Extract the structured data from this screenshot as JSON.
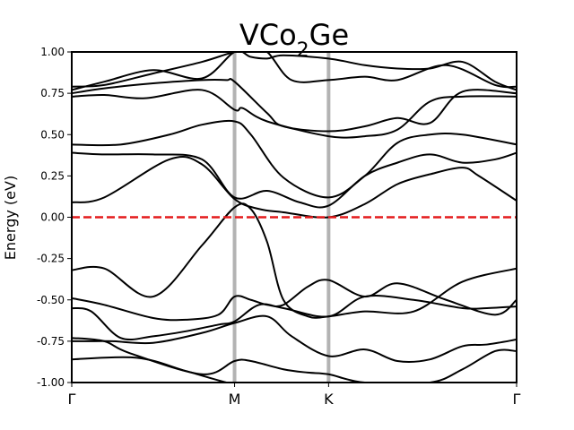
{
  "chart_data": {
    "type": "line",
    "title_main": "VCo",
    "title_sub": "2",
    "title_tail": "Ge",
    "ylabel": "Energy (eV)",
    "xlabel": "",
    "ylim": [
      -1.0,
      1.0
    ],
    "yticks": [
      "-1.00",
      "-0.75",
      "-0.50",
      "-0.25",
      "0.00",
      "0.25",
      "0.50",
      "0.75",
      "1.00"
    ],
    "ytick_values": [
      -1.0,
      -0.75,
      -0.5,
      -0.25,
      0.0,
      0.25,
      0.5,
      0.75,
      1.0
    ],
    "kpath_labels": [
      "Γ",
      "M",
      "K",
      "Γ"
    ],
    "kpath_positions": [
      0.0,
      1.0,
      1.5774,
      2.7321
    ],
    "grid": false,
    "legend": "none",
    "fermi_level": 0.0,
    "colors": {
      "bands": "#000000",
      "fermi": "#e41a1c",
      "kpath_lines": "#b3b3b3"
    },
    "series": [
      {
        "x": [
          0,
          0.4,
          0.7,
          0.95,
          1.0,
          1.2,
          1.4,
          1.5774,
          1.8,
          2.1,
          2.4,
          2.7321
        ],
        "y": [
          -0.86,
          -0.85,
          -0.93,
          -1.0,
          -1.0,
          -1.0,
          -1.0,
          -1.0,
          -1.0,
          -1.0,
          -1.0,
          -1.0
        ]
      },
      {
        "x": [
          0,
          0.2,
          0.35,
          0.8,
          1.0,
          1.1,
          1.3,
          1.45,
          1.5774,
          1.8,
          2.2,
          2.4,
          2.6,
          2.7321
        ],
        "y": [
          -0.73,
          -0.75,
          -0.82,
          -0.95,
          -0.87,
          -0.87,
          -0.92,
          -0.94,
          -0.95,
          -1.0,
          -1.0,
          -0.92,
          -0.81,
          -0.81
        ]
      },
      {
        "x": [
          0,
          0.1,
          0.25,
          0.5,
          0.8,
          1.0,
          1.2,
          1.35,
          1.5774,
          1.8,
          2.0,
          2.2,
          2.4,
          2.55,
          2.7321
        ],
        "y": [
          -0.75,
          -0.75,
          -0.75,
          -0.76,
          -0.7,
          -0.64,
          -0.6,
          -0.72,
          -0.84,
          -0.8,
          -0.87,
          -0.86,
          -0.78,
          -0.77,
          -0.74
        ]
      },
      {
        "x": [
          0,
          0.12,
          0.3,
          0.5,
          0.7,
          0.9,
          1.0,
          1.15,
          1.3,
          1.5774,
          1.8,
          2.1,
          2.4,
          2.55,
          2.7321
        ],
        "y": [
          -0.55,
          -0.57,
          -0.73,
          -0.72,
          -0.69,
          -0.65,
          -0.63,
          -0.53,
          -0.55,
          -0.6,
          -0.48,
          -0.5,
          -0.55,
          -0.55,
          -0.54
        ]
      },
      {
        "x": [
          0,
          0.2,
          0.5,
          0.7,
          0.9,
          1.0,
          1.1,
          1.2,
          1.3,
          1.45,
          1.5774,
          1.8,
          2.0,
          2.3,
          2.6,
          2.7321
        ],
        "y": [
          -0.49,
          -0.53,
          -0.61,
          -0.62,
          -0.59,
          -0.48,
          -0.5,
          -0.53,
          -0.53,
          -0.42,
          -0.38,
          -0.48,
          -0.4,
          -0.5,
          -0.59,
          -0.5
        ]
      },
      {
        "x": [
          0,
          0.2,
          0.5,
          0.8,
          1.0,
          1.1,
          1.2,
          1.3,
          1.45,
          1.5774,
          1.8,
          2.1,
          2.4,
          2.7321
        ],
        "y": [
          -0.32,
          -0.31,
          -0.48,
          -0.17,
          0.06,
          0.05,
          -0.15,
          -0.5,
          -0.6,
          -0.6,
          -0.57,
          -0.57,
          -0.39,
          -0.31
        ]
      },
      {
        "x": [
          0,
          0.2,
          0.6,
          0.8,
          1.0,
          1.15,
          1.3,
          1.5774,
          1.8,
          2.0,
          2.2,
          2.4,
          2.5,
          2.7321
        ],
        "y": [
          0.09,
          0.12,
          0.35,
          0.32,
          0.11,
          0.05,
          0.03,
          0.0,
          0.08,
          0.2,
          0.26,
          0.3,
          0.25,
          0.1
        ]
      },
      {
        "x": [
          0,
          0.2,
          0.5,
          0.8,
          1.0,
          1.2,
          1.4,
          1.5774,
          1.8,
          2.0,
          2.2,
          2.4,
          2.6,
          2.7321
        ],
        "y": [
          0.39,
          0.38,
          0.38,
          0.35,
          0.12,
          0.16,
          0.09,
          0.07,
          0.25,
          0.33,
          0.38,
          0.33,
          0.35,
          0.39
        ]
      },
      {
        "x": [
          0,
          0.3,
          0.6,
          0.8,
          1.0,
          1.1,
          1.3,
          1.5774,
          1.8,
          2.0,
          2.2,
          2.4,
          2.7321
        ],
        "y": [
          0.44,
          0.44,
          0.5,
          0.56,
          0.58,
          0.5,
          0.24,
          0.12,
          0.25,
          0.45,
          0.5,
          0.5,
          0.44
        ]
      },
      {
        "x": [
          0,
          0.2,
          0.45,
          0.8,
          1.0,
          1.05,
          1.2,
          1.5774,
          1.8,
          2.0,
          2.2,
          2.4,
          2.7321
        ],
        "y": [
          0.73,
          0.74,
          0.72,
          0.77,
          0.65,
          0.66,
          0.58,
          0.49,
          0.49,
          0.53,
          0.7,
          0.73,
          0.73
        ]
      },
      {
        "x": [
          0,
          0.2,
          0.5,
          0.8,
          0.95,
          1.0,
          1.2,
          1.3,
          1.5774,
          1.8,
          2.0,
          2.2,
          2.4,
          2.7321
        ],
        "y": [
          0.75,
          0.78,
          0.81,
          0.83,
          0.83,
          0.82,
          0.63,
          0.55,
          0.52,
          0.55,
          0.6,
          0.57,
          0.76,
          0.75
        ]
      },
      {
        "x": [
          0,
          0.2,
          0.5,
          0.8,
          1.0,
          1.1,
          1.2,
          1.35,
          1.5774,
          1.8,
          2.0,
          2.3,
          2.6,
          2.7321
        ],
        "y": [
          0.79,
          0.8,
          0.87,
          0.94,
          1.0,
          1.0,
          1.0,
          0.83,
          0.83,
          0.85,
          0.83,
          0.92,
          0.8,
          0.79
        ]
      },
      {
        "x": [
          0,
          0.2,
          0.5,
          0.8,
          1.0,
          1.1,
          1.2,
          1.3,
          1.5774,
          1.8,
          2.0,
          2.2,
          2.4,
          2.6,
          2.7321
        ],
        "y": [
          0.77,
          0.82,
          0.89,
          0.84,
          1.0,
          0.97,
          0.96,
          0.98,
          0.96,
          0.92,
          0.9,
          0.9,
          0.94,
          0.82,
          0.77
        ]
      }
    ]
  }
}
